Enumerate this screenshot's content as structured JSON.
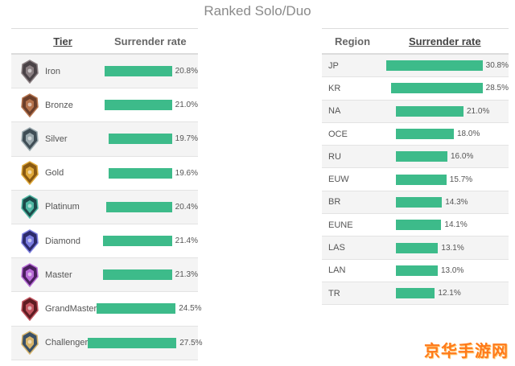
{
  "page_title": "Ranked Solo/Duo",
  "watermark": "京华手游网",
  "colors": {
    "bar": "#3dbb8a",
    "watermark": "#ff7a1a"
  },
  "chart_data": [
    {
      "type": "table",
      "columns": [
        "Tier",
        "Surrender rate"
      ],
      "xlim": [
        0,
        30
      ],
      "rows": [
        {
          "label": "Iron",
          "value": 20.8,
          "display": "20.8%",
          "icon": "iron-emblem-icon"
        },
        {
          "label": "Bronze",
          "value": 21.0,
          "display": "21.0%",
          "icon": "bronze-emblem-icon"
        },
        {
          "label": "Silver",
          "value": 19.7,
          "display": "19.7%",
          "icon": "silver-emblem-icon"
        },
        {
          "label": "Gold",
          "value": 19.6,
          "display": "19.6%",
          "icon": "gold-emblem-icon"
        },
        {
          "label": "Platinum",
          "value": 20.4,
          "display": "20.4%",
          "icon": "platinum-emblem-icon"
        },
        {
          "label": "Diamond",
          "value": 21.4,
          "display": "21.4%",
          "icon": "diamond-emblem-icon"
        },
        {
          "label": "Master",
          "value": 21.3,
          "display": "21.3%",
          "icon": "master-emblem-icon"
        },
        {
          "label": "GrandMaster",
          "value": 24.5,
          "display": "24.5%",
          "icon": "grandmaster-emblem-icon"
        },
        {
          "label": "Challenger",
          "value": 27.5,
          "display": "27.5%",
          "icon": "challenger-emblem-icon"
        }
      ]
    },
    {
      "type": "table",
      "columns": [
        "Region",
        "Surrender rate"
      ],
      "xlim": [
        0,
        30
      ],
      "rows": [
        {
          "label": "JP",
          "value": 30.8,
          "display": "30.8%"
        },
        {
          "label": "KR",
          "value": 28.5,
          "display": "28.5%"
        },
        {
          "label": "NA",
          "value": 21.0,
          "display": "21.0%"
        },
        {
          "label": "OCE",
          "value": 18.0,
          "display": "18.0%"
        },
        {
          "label": "RU",
          "value": 16.0,
          "display": "16.0%"
        },
        {
          "label": "EUW",
          "value": 15.7,
          "display": "15.7%"
        },
        {
          "label": "BR",
          "value": 14.3,
          "display": "14.3%"
        },
        {
          "label": "EUNE",
          "value": 14.1,
          "display": "14.1%"
        },
        {
          "label": "LAS",
          "value": 13.1,
          "display": "13.1%"
        },
        {
          "label": "LAN",
          "value": 13.0,
          "display": "13.0%"
        },
        {
          "label": "TR",
          "value": 12.1,
          "display": "12.1%"
        }
      ]
    }
  ]
}
